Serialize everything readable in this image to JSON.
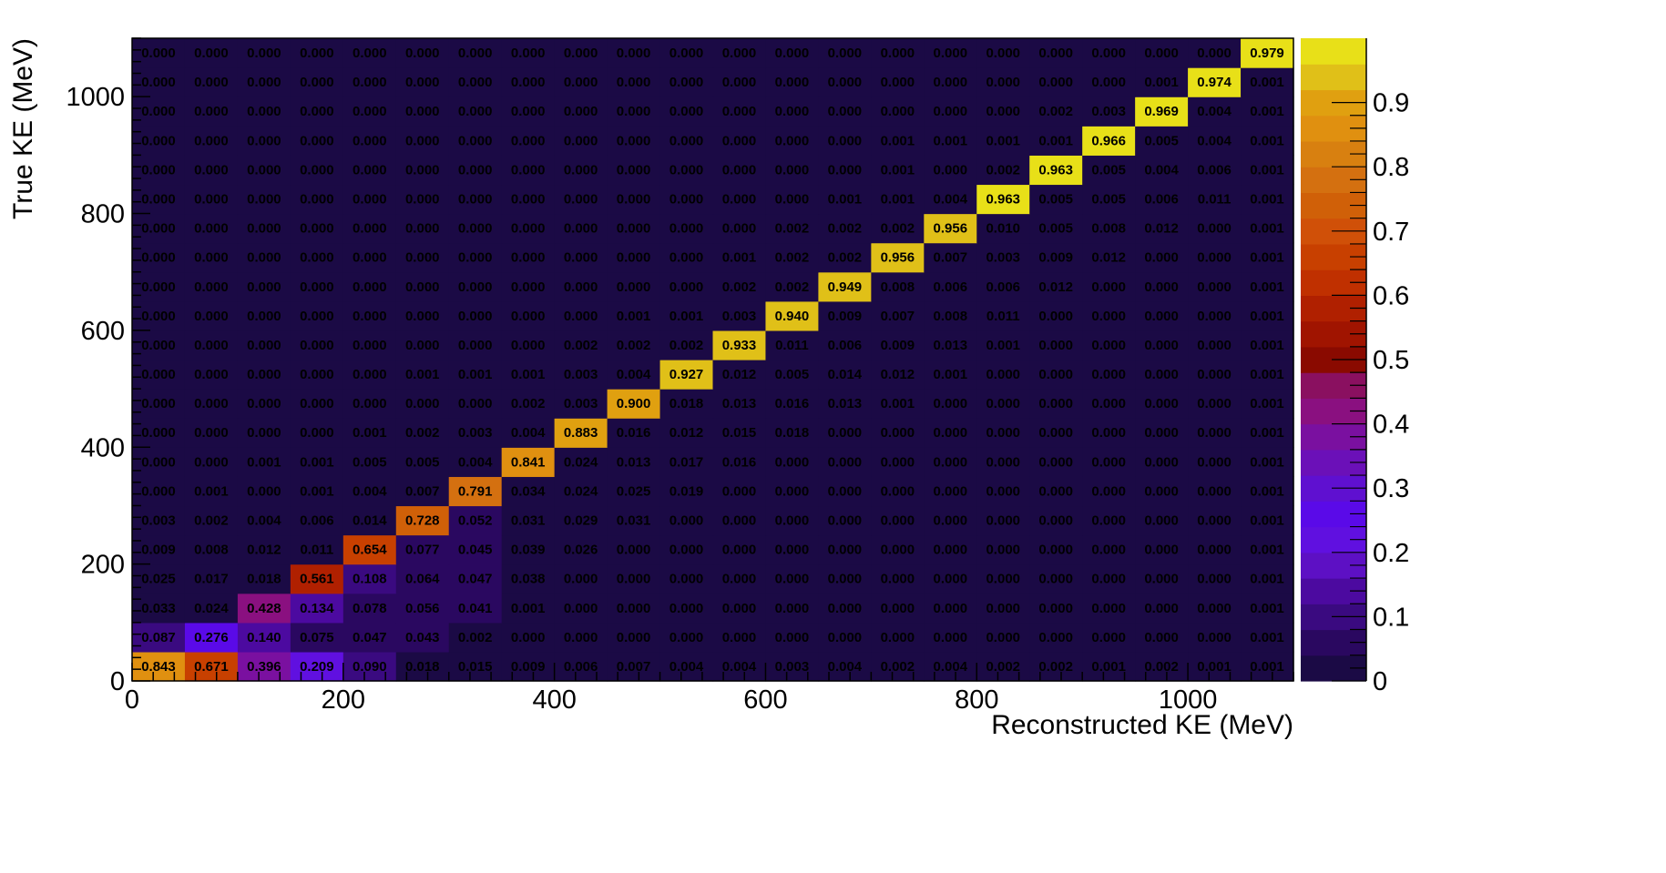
{
  "chart_data": {
    "type": "heatmap",
    "xlabel": "Reconstructed KE (MeV)",
    "ylabel": "True KE (MeV)",
    "xlim": [
      0,
      1100
    ],
    "ylim": [
      0,
      1100
    ],
    "bin_width": 50,
    "x_ticks": [
      0,
      200,
      400,
      600,
      800,
      1000
    ],
    "y_ticks": [
      0,
      200,
      400,
      600,
      800,
      1000
    ],
    "x_tick_labels": [
      "0",
      "200",
      "400",
      "600",
      "800",
      "1000"
    ],
    "y_tick_labels": [
      "0",
      "200",
      "400",
      "600",
      "800",
      "1000"
    ],
    "colorbar": {
      "range": [
        0,
        1
      ],
      "ticks": [
        0,
        0.1,
        0.2,
        0.3,
        0.4,
        0.5,
        0.6,
        0.7,
        0.8,
        0.9
      ],
      "tick_labels": [
        "0",
        "0.1",
        "0.2",
        "0.3",
        "0.4",
        "0.5",
        "0.6",
        "0.7",
        "0.8",
        "0.9"
      ]
    },
    "cell_format": "3 decimals",
    "colors": [
      "#1b0a45",
      "#2a0860",
      "#3a0a80",
      "#4c0aa0",
      "#5d10c4",
      "#6010e0",
      "#5a0ae8",
      "#5f10d0",
      "#6b10b8",
      "#7a10a0",
      "#8a1080",
      "#8a1060",
      "#8a0a00",
      "#a01400",
      "#b02000",
      "#c03000",
      "#c84000",
      "#d05008",
      "#d06008",
      "#d47010",
      "#d88010",
      "#e09010",
      "#e0a010",
      "#e0c018",
      "#e8e018"
    ],
    "z": [
      [
        0.843,
        0.671,
        0.396,
        0.209,
        0.09,
        0.018,
        0.015,
        0.009,
        0.006,
        0.007,
        0.004,
        0.004,
        0.003,
        0.004,
        0.002,
        0.004,
        0.002,
        0.002,
        0.001,
        0.002,
        0.001,
        0.001
      ],
      [
        0.087,
        0.276,
        0.14,
        0.075,
        0.047,
        0.043,
        0.002,
        0.0,
        0.0,
        0.0,
        0.0,
        0.0,
        0.0,
        0.0,
        0.0,
        0.0,
        0.0,
        0.0,
        0.0,
        0.0,
        0.0,
        0.001
      ],
      [
        0.033,
        0.024,
        0.428,
        0.134,
        0.078,
        0.056,
        0.041,
        0.001,
        0.0,
        0.0,
        0.0,
        0.0,
        0.0,
        0.0,
        0.0,
        0.0,
        0.0,
        0.0,
        0.0,
        0.0,
        0.0,
        0.001
      ],
      [
        0.025,
        0.017,
        0.018,
        0.561,
        0.108,
        0.064,
        0.047,
        0.038,
        0.0,
        0.0,
        0.0,
        0.0,
        0.0,
        0.0,
        0.0,
        0.0,
        0.0,
        0.0,
        0.0,
        0.0,
        0.0,
        0.001
      ],
      [
        0.009,
        0.008,
        0.012,
        0.011,
        0.654,
        0.077,
        0.045,
        0.039,
        0.026,
        0.0,
        0.0,
        0.0,
        0.0,
        0.0,
        0.0,
        0.0,
        0.0,
        0.0,
        0.0,
        0.0,
        0.0,
        0.001
      ],
      [
        0.003,
        0.002,
        0.004,
        0.006,
        0.014,
        0.728,
        0.052,
        0.031,
        0.029,
        0.031,
        0.0,
        0.0,
        0.0,
        0.0,
        0.0,
        0.0,
        0.0,
        0.0,
        0.0,
        0.0,
        0.0,
        0.001
      ],
      [
        0.0,
        0.001,
        0.0,
        0.001,
        0.004,
        0.007,
        0.791,
        0.034,
        0.024,
        0.025,
        0.019,
        0.0,
        0.0,
        0.0,
        0.0,
        0.0,
        0.0,
        0.0,
        0.0,
        0.0,
        0.0,
        0.001
      ],
      [
        0.0,
        0.0,
        0.001,
        0.001,
        0.005,
        0.005,
        0.004,
        0.841,
        0.024,
        0.013,
        0.017,
        0.016,
        0.0,
        0.0,
        0.0,
        0.0,
        0.0,
        0.0,
        0.0,
        0.0,
        0.0,
        0.001
      ],
      [
        0.0,
        0.0,
        0.0,
        0.0,
        0.001,
        0.002,
        0.003,
        0.004,
        0.883,
        0.016,
        0.012,
        0.015,
        0.018,
        0.0,
        0.0,
        0.0,
        0.0,
        0.0,
        0.0,
        0.0,
        0.0,
        0.001
      ],
      [
        0.0,
        0.0,
        0.0,
        0.0,
        0.0,
        0.0,
        0.0,
        0.002,
        0.003,
        0.9,
        0.018,
        0.013,
        0.016,
        0.013,
        0.001,
        0.0,
        0.0,
        0.0,
        0.0,
        0.0,
        0.0,
        0.001
      ],
      [
        0.0,
        0.0,
        0.0,
        0.0,
        0.0,
        0.001,
        0.001,
        0.001,
        0.003,
        0.004,
        0.927,
        0.012,
        0.005,
        0.014,
        0.012,
        0.001,
        0.0,
        0.0,
        0.0,
        0.0,
        0.0,
        0.001
      ],
      [
        0.0,
        0.0,
        0.0,
        0.0,
        0.0,
        0.0,
        0.0,
        0.0,
        0.002,
        0.002,
        0.002,
        0.933,
        0.011,
        0.006,
        0.009,
        0.013,
        0.001,
        0.0,
        0.0,
        0.0,
        0.0,
        0.001
      ],
      [
        0.0,
        0.0,
        0.0,
        0.0,
        0.0,
        0.0,
        0.0,
        0.0,
        0.0,
        0.001,
        0.001,
        0.003,
        0.94,
        0.009,
        0.007,
        0.008,
        0.011,
        0.0,
        0.0,
        0.0,
        0.0,
        0.001
      ],
      [
        0.0,
        0.0,
        0.0,
        0.0,
        0.0,
        0.0,
        0.0,
        0.0,
        0.0,
        0.0,
        0.0,
        0.002,
        0.002,
        0.949,
        0.008,
        0.006,
        0.006,
        0.012,
        0.0,
        0.0,
        0.0,
        0.001
      ],
      [
        0.0,
        0.0,
        0.0,
        0.0,
        0.0,
        0.0,
        0.0,
        0.0,
        0.0,
        0.0,
        0.0,
        0.001,
        0.002,
        0.002,
        0.956,
        0.007,
        0.003,
        0.009,
        0.012,
        0.0,
        0.0,
        0.001
      ],
      [
        0.0,
        0.0,
        0.0,
        0.0,
        0.0,
        0.0,
        0.0,
        0.0,
        0.0,
        0.0,
        0.0,
        0.0,
        0.002,
        0.002,
        0.002,
        0.956,
        0.01,
        0.005,
        0.008,
        0.012,
        0.0,
        0.001
      ],
      [
        0.0,
        0.0,
        0.0,
        0.0,
        0.0,
        0.0,
        0.0,
        0.0,
        0.0,
        0.0,
        0.0,
        0.0,
        0.0,
        0.001,
        0.001,
        0.004,
        0.963,
        0.005,
        0.005,
        0.006,
        0.011,
        0.001
      ],
      [
        0.0,
        0.0,
        0.0,
        0.0,
        0.0,
        0.0,
        0.0,
        0.0,
        0.0,
        0.0,
        0.0,
        0.0,
        0.0,
        0.0,
        0.001,
        0.0,
        0.002,
        0.963,
        0.005,
        0.004,
        0.006,
        0.001
      ],
      [
        0.0,
        0.0,
        0.0,
        0.0,
        0.0,
        0.0,
        0.0,
        0.0,
        0.0,
        0.0,
        0.0,
        0.0,
        0.0,
        0.0,
        0.001,
        0.001,
        0.001,
        0.001,
        0.966,
        0.005,
        0.004,
        0.001
      ],
      [
        0.0,
        0.0,
        0.0,
        0.0,
        0.0,
        0.0,
        0.0,
        0.0,
        0.0,
        0.0,
        0.0,
        0.0,
        0.0,
        0.0,
        0.0,
        0.0,
        0.0,
        0.002,
        0.003,
        0.969,
        0.004,
        0.001
      ],
      [
        0.0,
        0.0,
        0.0,
        0.0,
        0.0,
        0.0,
        0.0,
        0.0,
        0.0,
        0.0,
        0.0,
        0.0,
        0.0,
        0.0,
        0.0,
        0.0,
        0.0,
        0.0,
        0.0,
        0.001,
        0.974,
        0.001
      ],
      [
        0.0,
        0.0,
        0.0,
        0.0,
        0.0,
        0.0,
        0.0,
        0.0,
        0.0,
        0.0,
        0.0,
        0.0,
        0.0,
        0.0,
        0.0,
        0.0,
        0.0,
        0.0,
        0.0,
        0.0,
        0.0,
        0.979
      ]
    ]
  }
}
